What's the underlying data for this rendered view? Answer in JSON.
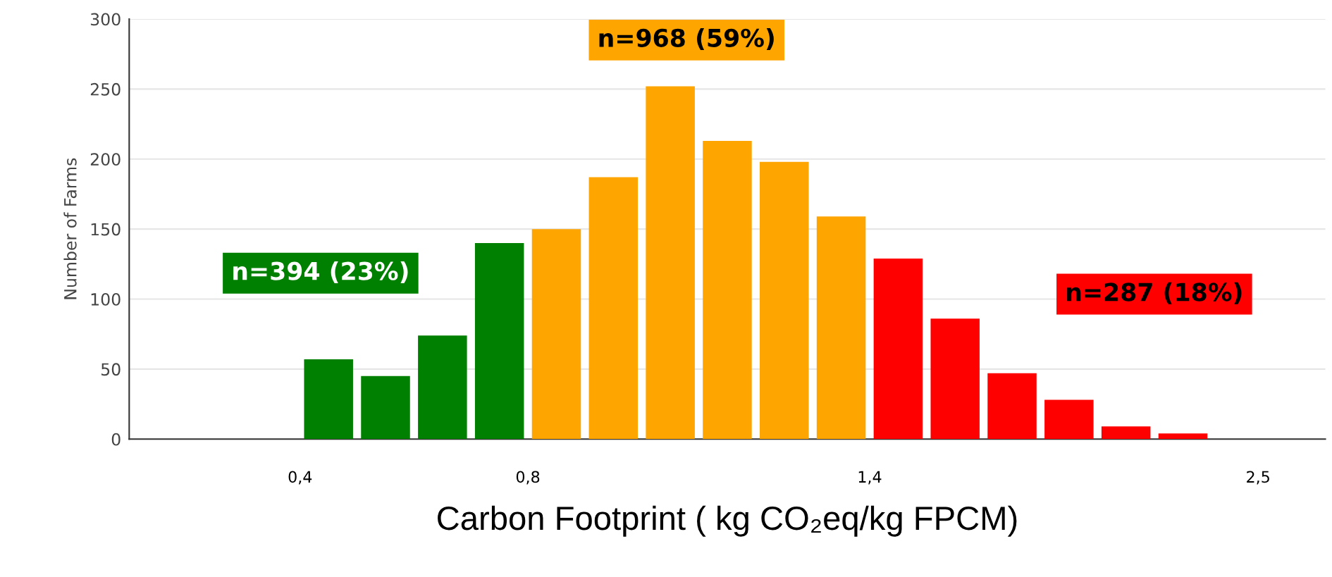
{
  "chart_data": {
    "type": "bar",
    "xlabel": "Carbon Footprint ( kg CO₂eq/kg FPCM)",
    "ylabel": "Number of Farms",
    "categories": [
      null,
      null,
      null,
      null,
      null,
      null,
      null,
      null,
      null,
      null,
      null,
      null,
      null,
      null,
      null,
      null,
      null,
      null,
      null,
      null,
      null
    ],
    "series": [
      {
        "color": "#008000",
        "values": [
          null,
          null,
          null,
          57,
          45,
          74,
          140,
          null,
          null,
          null,
          null,
          null,
          null,
          null,
          null,
          null,
          null,
          null,
          null,
          null,
          null
        ]
      },
      {
        "color": "#ffa500",
        "values": [
          null,
          null,
          null,
          null,
          null,
          null,
          null,
          150,
          187,
          252,
          213,
          198,
          159,
          null,
          null,
          null,
          null,
          null,
          null,
          null,
          null
        ]
      },
      {
        "color": "#ff0000",
        "values": [
          null,
          null,
          null,
          null,
          null,
          null,
          null,
          null,
          null,
          null,
          null,
          null,
          null,
          129,
          86,
          47,
          28,
          9,
          4,
          null,
          null
        ]
      }
    ],
    "ylim": [
      0,
      300
    ],
    "yticks": [
      0,
      50,
      100,
      150,
      200,
      250,
      300
    ],
    "grid": "y",
    "annotations": [
      "n=394 (23%)",
      "n=968 (59%)",
      "n=287 (18%)",
      "0,4",
      "0,8",
      "1,4",
      "2,5"
    ]
  }
}
